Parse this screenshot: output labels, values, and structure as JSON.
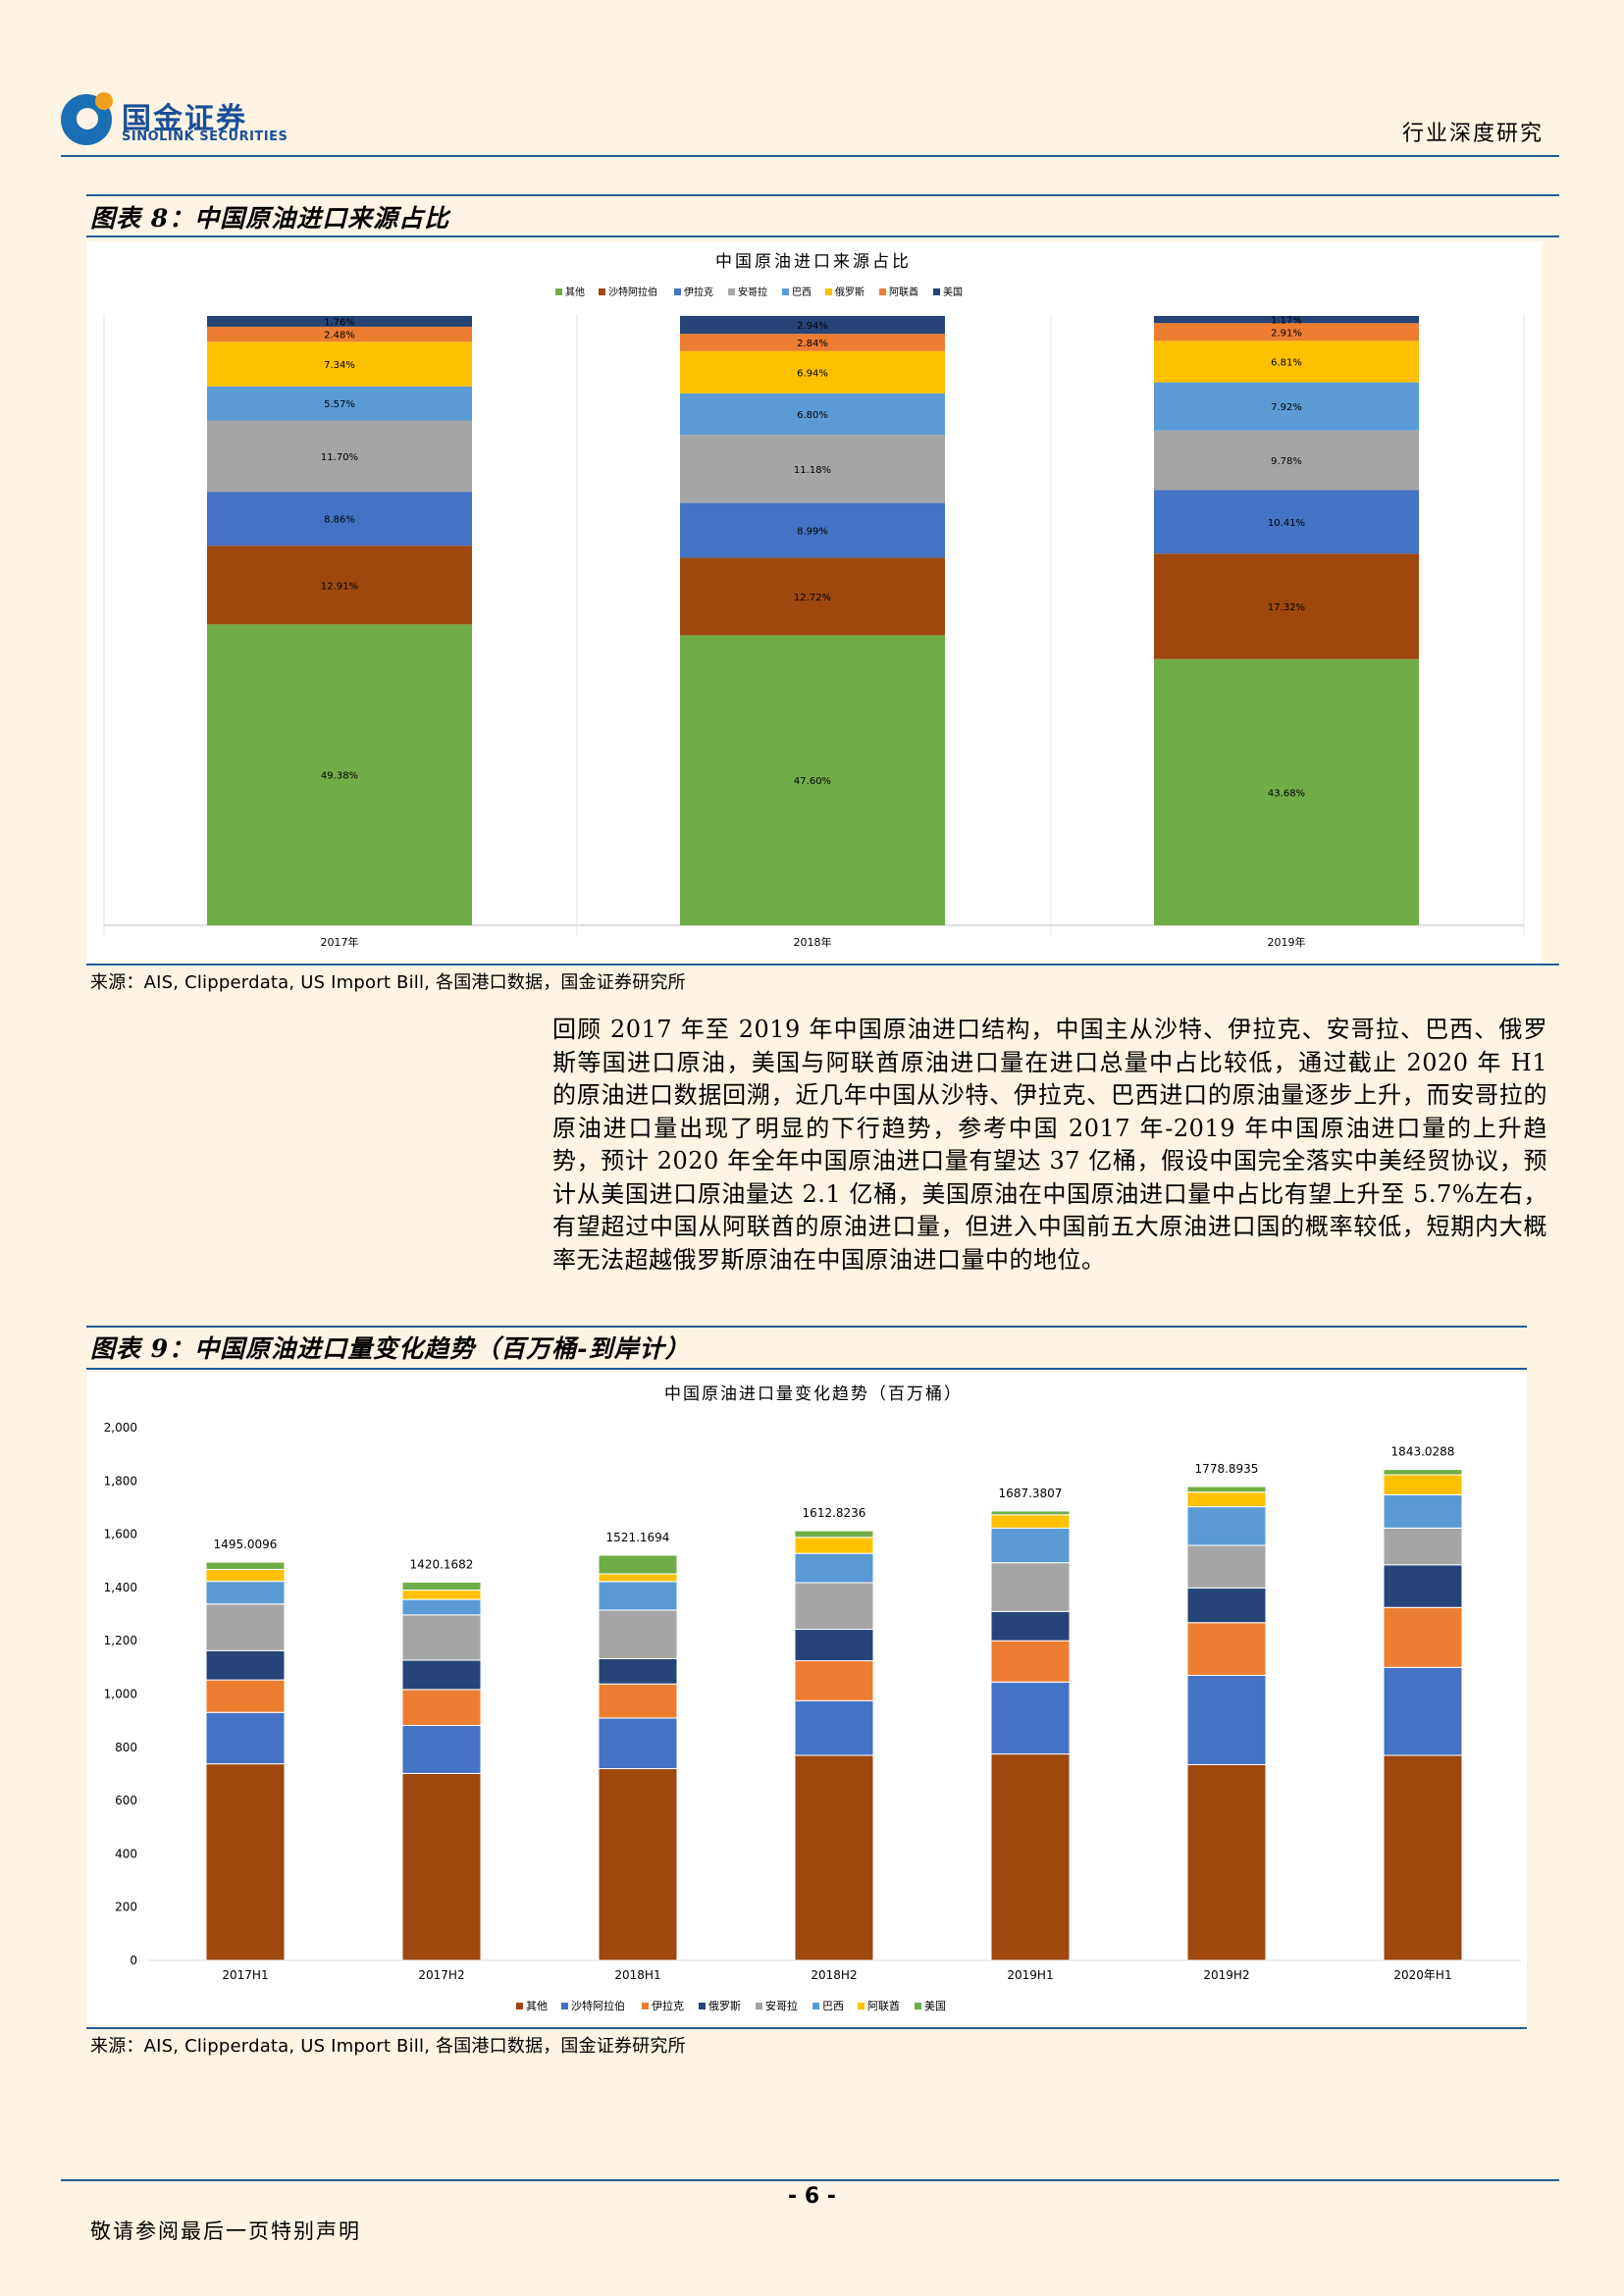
{
  "header": {
    "logo_cn": "国金证券",
    "logo_en": "SINOLINK SECURITIES",
    "report_type": "行业深度研究"
  },
  "figure8": {
    "label": "图表 8：中国原油进口来源占比",
    "source": "来源：AIS, Clipperdata, US Import Bill, 各国港口数据，国金证券研究所"
  },
  "paragraph": "回顾 2017 年至 2019 年中国原油进口结构，中国主从沙特、伊拉克、安哥拉、巴西、俄罗斯等国进口原油，美国与阿联酋原油进口量在进口总量中占比较低，通过截止 2020 年 H1 的原油进口数据回溯，近几年中国从沙特、伊拉克、巴西进口的原油量逐步上升，而安哥拉的原油进口量出现了明显的下行趋势，参考中国 2017 年-2019 年中国原油进口量的上升趋势，预计 2020 年全年中国原油进口量有望达 37 亿桶，假设中国完全落实中美经贸协议，预计从美国进口原油量达 2.1 亿桶，美国原油在中国原油进口量中占比有望上升至 5.7%左右，有望超过中国从阿联酋的原油进口量，但进入中国前五大原油进口国的概率较低，短期内大概率无法超越俄罗斯原油在中国原油进口量中的地位。",
  "figure9": {
    "label": "图表 9：中国原油进口量变化趋势（百万桶-到岸计）",
    "source": "来源：AIS, Clipperdata, US Import Bill, 各国港口数据，国金证券研究所"
  },
  "page_number": "- 6 -",
  "footer_note": "敬请参阅最后一页特别声明",
  "colors": {
    "其他_chart8": "#70ad47",
    "沙特阿拉伯_chart8": "#9e480e",
    "伊拉克": "#4472c4",
    "安哥拉": "#a5a5a5",
    "巴西": "#5b9bd5",
    "俄罗斯_chart8": "#ffc000",
    "阿联酋_chart8": "#ed7d31",
    "美国_chart8": "#264478",
    "其他_chart9": "#9e480e",
    "沙特阿拉伯_chart9": "#4472c4",
    "伊拉克_chart9": "#ed7d31",
    "俄罗斯_chart9": "#264478",
    "安哥拉_chart9": "#a5a5a5",
    "巴西_chart9": "#5b9bd5",
    "阿联酋_chart9": "#ffc000",
    "美国_chart9": "#70ad47"
  },
  "chart_data": [
    {
      "type": "bar",
      "stacked": "percent",
      "title": "中国原油进口来源占比",
      "categories": [
        "2017年",
        "2018年",
        "2019年"
      ],
      "legend_position": "top",
      "series": [
        {
          "name": "其他",
          "values": [
            49.38,
            47.6,
            43.68
          ],
          "labels": [
            "49.38%",
            "47.60%",
            "43.68%"
          ]
        },
        {
          "name": "沙特阿拉伯",
          "values": [
            12.91,
            12.72,
            17.32
          ],
          "labels": [
            "12.91%",
            "12.72%",
            "17.32%"
          ]
        },
        {
          "name": "伊拉克",
          "values": [
            8.86,
            8.99,
            10.41
          ],
          "labels": [
            "8.86%",
            "8.99%",
            "10.41%"
          ]
        },
        {
          "name": "安哥拉",
          "values": [
            11.7,
            11.18,
            9.78
          ],
          "labels": [
            "11.70%",
            "11.18%",
            "9.78%"
          ]
        },
        {
          "name": "巴西",
          "values": [
            5.57,
            6.8,
            7.92
          ],
          "labels": [
            "5.57%",
            "6.80%",
            "7.92%"
          ]
        },
        {
          "name": "俄罗斯",
          "values": [
            7.34,
            6.94,
            6.81
          ],
          "labels": [
            "7.34%",
            "6.94%",
            "6.81%"
          ]
        },
        {
          "name": "阿联酋",
          "values": [
            2.48,
            2.84,
            2.91
          ],
          "labels": [
            "2.48%",
            "2.84%",
            "2.91%"
          ]
        },
        {
          "name": "美国",
          "values": [
            1.76,
            2.94,
            1.17
          ],
          "labels": [
            "1.76%",
            "2.94%",
            "1.17%"
          ]
        }
      ]
    },
    {
      "type": "bar",
      "stacked": "normal",
      "title": "中国原油进口量变化趋势（百万桶）",
      "categories": [
        "2017H1",
        "2017H2",
        "2018H1",
        "2018H2",
        "2019H1",
        "2019H2",
        "2020年H1"
      ],
      "ylim": [
        0,
        2000
      ],
      "yticks": [
        "0",
        "200",
        "400",
        "600",
        "800",
        "1,000",
        "1,200",
        "1,400",
        "1,600",
        "1,800",
        "2,000"
      ],
      "legend_position": "bottom",
      "totals": [
        "1495.0096",
        "1420.1682",
        "1521.1694",
        "1612.8236",
        "1687.3807",
        "1778.8935",
        "1843.0288"
      ],
      "series": [
        {
          "name": "其他",
          "values": [
            738,
            702,
            720,
            770,
            775,
            735,
            770
          ]
        },
        {
          "name": "沙特阿拉伯",
          "values": [
            193,
            180,
            190,
            205,
            270,
            335,
            330
          ]
        },
        {
          "name": "伊拉克",
          "values": [
            122,
            135,
            128,
            150,
            155,
            198,
            225
          ]
        },
        {
          "name": "俄罗斯",
          "values": [
            110,
            110,
            95,
            118,
            110,
            130,
            160
          ]
        },
        {
          "name": "安哥拉",
          "values": [
            175,
            170,
            182,
            175,
            183,
            160,
            138
          ]
        },
        {
          "name": "巴西",
          "values": [
            85,
            58,
            107,
            110,
            130,
            145,
            125
          ]
        },
        {
          "name": "阿联酋",
          "values": [
            45,
            35,
            29,
            60,
            50,
            55,
            75
          ]
        },
        {
          "name": "美国",
          "values": [
            27,
            30,
            70,
            25,
            14,
            21,
            20
          ]
        }
      ]
    }
  ]
}
